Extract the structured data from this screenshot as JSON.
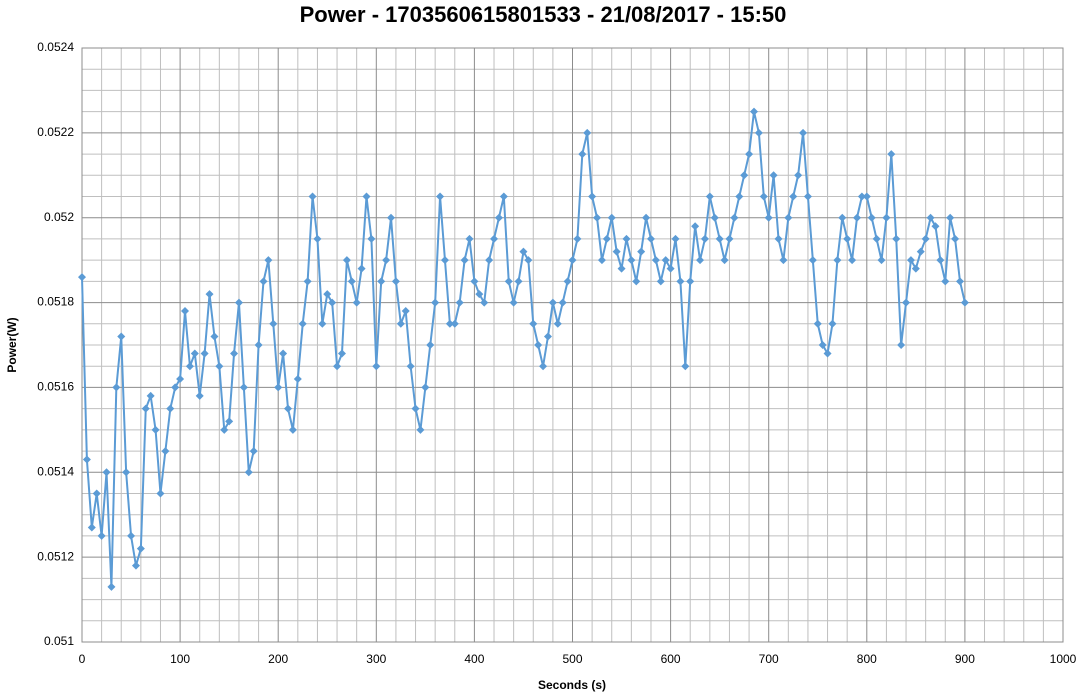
{
  "chart_data": {
    "type": "line",
    "title": "Power - 1703560615801533 - 21/08/2017 - 15:50",
    "x_label": "Seconds (s)",
    "y_label": "Power(W)",
    "xlim": [
      0,
      1000
    ],
    "xticks": [
      0,
      100,
      200,
      300,
      400,
      500,
      600,
      700,
      800,
      900,
      1000
    ],
    "ylim": [
      0.051,
      0.0524
    ],
    "yticks": [
      0.051,
      0.0512,
      0.0514,
      0.0516,
      0.0518,
      0.052,
      0.0522,
      0.0524
    ],
    "grid": true,
    "minor_grid": true,
    "marker": "diamond",
    "x": [
      0,
      5,
      10,
      15,
      20,
      25,
      30,
      35,
      40,
      45,
      50,
      55,
      60,
      65,
      70,
      75,
      80,
      85,
      90,
      95,
      100,
      105,
      110,
      115,
      120,
      125,
      130,
      135,
      140,
      145,
      150,
      155,
      160,
      165,
      170,
      175,
      180,
      185,
      190,
      195,
      200,
      205,
      210,
      215,
      220,
      225,
      230,
      235,
      240,
      245,
      250,
      255,
      260,
      265,
      270,
      275,
      280,
      285,
      290,
      295,
      300,
      305,
      310,
      315,
      320,
      325,
      330,
      335,
      340,
      345,
      350,
      355,
      360,
      365,
      370,
      375,
      380,
      385,
      390,
      395,
      400,
      405,
      410,
      415,
      420,
      425,
      430,
      435,
      440,
      445,
      450,
      455,
      460,
      465,
      470,
      475,
      480,
      485,
      490,
      495,
      500,
      505,
      510,
      515,
      520,
      525,
      530,
      535,
      540,
      545,
      550,
      555,
      560,
      565,
      570,
      575,
      580,
      585,
      590,
      595,
      600,
      605,
      610,
      615,
      620,
      625,
      630,
      635,
      640,
      645,
      650,
      655,
      660,
      665,
      670,
      675,
      680,
      685,
      690,
      695,
      700,
      705,
      710,
      715,
      720,
      725,
      730,
      735,
      740,
      745,
      750,
      755,
      760,
      765,
      770,
      775,
      780,
      785,
      790,
      795,
      800,
      805,
      810,
      815,
      820,
      825,
      830,
      835,
      840,
      845,
      850,
      855,
      860,
      865,
      870,
      875,
      880,
      885,
      890,
      895,
      900
    ],
    "series": [
      {
        "name": "Power(W)",
        "color": "#5b9bd5",
        "values": [
          0.05186,
          0.05143,
          0.05127,
          0.05135,
          0.05125,
          0.0514,
          0.05113,
          0.0516,
          0.05172,
          0.0514,
          0.05125,
          0.05118,
          0.05122,
          0.05155,
          0.05158,
          0.0515,
          0.05135,
          0.05145,
          0.05155,
          0.0516,
          0.05162,
          0.05178,
          0.05165,
          0.05168,
          0.05158,
          0.05168,
          0.05182,
          0.05172,
          0.05165,
          0.0515,
          0.05152,
          0.05168,
          0.0518,
          0.0516,
          0.0514,
          0.05145,
          0.0517,
          0.05185,
          0.0519,
          0.05175,
          0.0516,
          0.05168,
          0.05155,
          0.0515,
          0.05162,
          0.05175,
          0.05185,
          0.05205,
          0.05195,
          0.05175,
          0.05182,
          0.0518,
          0.05165,
          0.05168,
          0.0519,
          0.05185,
          0.0518,
          0.05188,
          0.05205,
          0.05195,
          0.05165,
          0.05185,
          0.0519,
          0.052,
          0.05185,
          0.05175,
          0.05178,
          0.05165,
          0.05155,
          0.0515,
          0.0516,
          0.0517,
          0.0518,
          0.05205,
          0.0519,
          0.05175,
          0.05175,
          0.0518,
          0.0519,
          0.05195,
          0.05185,
          0.05182,
          0.0518,
          0.0519,
          0.05195,
          0.052,
          0.05205,
          0.05185,
          0.0518,
          0.05185,
          0.05192,
          0.0519,
          0.05175,
          0.0517,
          0.05165,
          0.05172,
          0.0518,
          0.05175,
          0.0518,
          0.05185,
          0.0519,
          0.05195,
          0.05215,
          0.0522,
          0.05205,
          0.052,
          0.0519,
          0.05195,
          0.052,
          0.05192,
          0.05188,
          0.05195,
          0.0519,
          0.05185,
          0.05192,
          0.052,
          0.05195,
          0.0519,
          0.05185,
          0.0519,
          0.05188,
          0.05195,
          0.05185,
          0.05165,
          0.05185,
          0.05198,
          0.0519,
          0.05195,
          0.05205,
          0.052,
          0.05195,
          0.0519,
          0.05195,
          0.052,
          0.05205,
          0.0521,
          0.05215,
          0.05225,
          0.0522,
          0.05205,
          0.052,
          0.0521,
          0.05195,
          0.0519,
          0.052,
          0.05205,
          0.0521,
          0.0522,
          0.05205,
          0.0519,
          0.05175,
          0.0517,
          0.05168,
          0.05175,
          0.0519,
          0.052,
          0.05195,
          0.0519,
          0.052,
          0.05205,
          0.05205,
          0.052,
          0.05195,
          0.0519,
          0.052,
          0.05215,
          0.05195,
          0.0517,
          0.0518,
          0.0519,
          0.05188,
          0.05192,
          0.05195,
          0.052,
          0.05198,
          0.0519,
          0.05185,
          0.052,
          0.05195,
          0.05185,
          0.0518
        ]
      }
    ]
  }
}
